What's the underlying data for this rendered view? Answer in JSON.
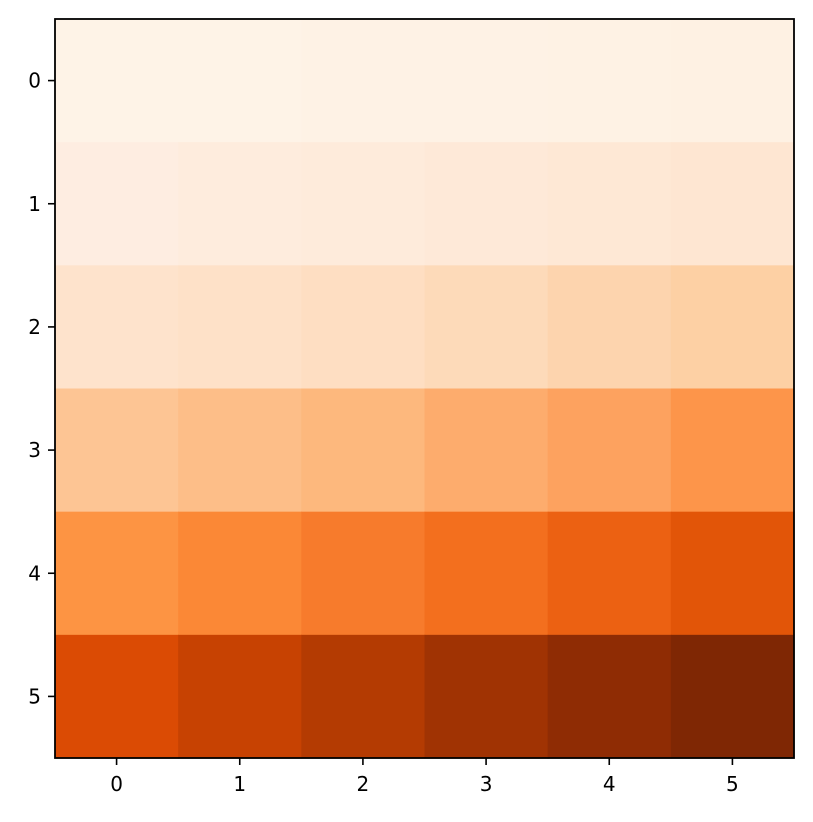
{
  "chart_data": {
    "type": "heatmap",
    "colormap": "Oranges",
    "x_ticks": [
      "0",
      "1",
      "2",
      "3",
      "4",
      "5"
    ],
    "y_ticks": [
      "0",
      "1",
      "2",
      "3",
      "4",
      "5"
    ],
    "xlim": [
      -0.5,
      5.5
    ],
    "ylim": [
      5.5,
      -0.5
    ],
    "grid": false,
    "legend": "none",
    "title": "",
    "xlabel": "",
    "ylabel": "",
    "cells": [
      [
        "#fef3e7",
        "#fef3e7",
        "#fef2e5",
        "#fef2e5",
        "#fef2e4",
        "#fef1e3"
      ],
      [
        "#feede1",
        "#feecdd",
        "#feebdb",
        "#fee9d8",
        "#fee8d5",
        "#fee6d2"
      ],
      [
        "#fee3cc",
        "#fee1c8",
        "#fedec2",
        "#fddab9",
        "#fdd4ae",
        "#fdd0a4"
      ],
      [
        "#fdc594",
        "#fdbe88",
        "#fdb87d",
        "#fdac6d",
        "#fda25f",
        "#fd954a"
      ],
      [
        "#fd9443",
        "#fb8836",
        "#f77b2c",
        "#f36f1e",
        "#ec6112",
        "#e25508"
      ],
      [
        "#db4b04",
        "#c74202",
        "#b43b02",
        "#a03303",
        "#8f2c04",
        "#7f2704"
      ]
    ]
  }
}
